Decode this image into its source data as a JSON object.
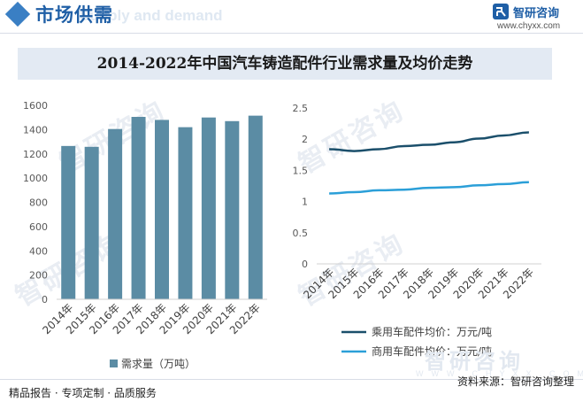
{
  "header": {
    "title": "市场供需",
    "subtitle_en": "Supply and demand"
  },
  "brand": {
    "name": "智研咨询",
    "url": "www.chyxx.com"
  },
  "watermark": {
    "text": "智研咨询",
    "footer_en": "WWW.CHYXX.COM"
  },
  "footer": {
    "left_text": "精品报告 · 专项定制 · 品质服务",
    "source_text": "资料来源：智研咨询整理"
  },
  "chart_data": [
    {
      "type": "bar",
      "title": "2014-2022年中国汽车铸造配件行业需求量及均价走势",
      "categories": [
        "2014年",
        "2015年",
        "2016年",
        "2017年",
        "2018年",
        "2019年",
        "2020年",
        "2021年",
        "2022年"
      ],
      "series": [
        {
          "name": "需求量（万吨）",
          "values": [
            1265,
            1258,
            1405,
            1505,
            1480,
            1420,
            1500,
            1470,
            1515
          ]
        }
      ],
      "ylim": [
        0,
        1600
      ],
      "yticks": [
        0,
        200,
        400,
        600,
        800,
        1000,
        1200,
        1400,
        1600
      ],
      "grid": false,
      "legend": "bottom",
      "colors": {
        "bar": "#5b8ca4"
      }
    },
    {
      "type": "line",
      "categories": [
        "2014年",
        "2015年",
        "2016年",
        "2017年",
        "2018年",
        "2019年",
        "2020年",
        "2021年",
        "2022年"
      ],
      "series": [
        {
          "name": "乘用车配件均价：万元/吨",
          "values": [
            1.84,
            1.81,
            1.84,
            1.89,
            1.91,
            1.95,
            2.01,
            2.06,
            2.11
          ],
          "color": "#1b4f6b"
        },
        {
          "name": "商用车配件均价：万元/吨",
          "values": [
            1.13,
            1.15,
            1.18,
            1.19,
            1.22,
            1.23,
            1.26,
            1.28,
            1.31
          ],
          "color": "#2b9fd8"
        }
      ],
      "ylim": [
        0,
        2.5
      ],
      "yticks": [
        "0",
        "0.5",
        "1",
        "1.5",
        "2",
        "2.5"
      ],
      "grid": false,
      "legend": "bottom"
    }
  ]
}
